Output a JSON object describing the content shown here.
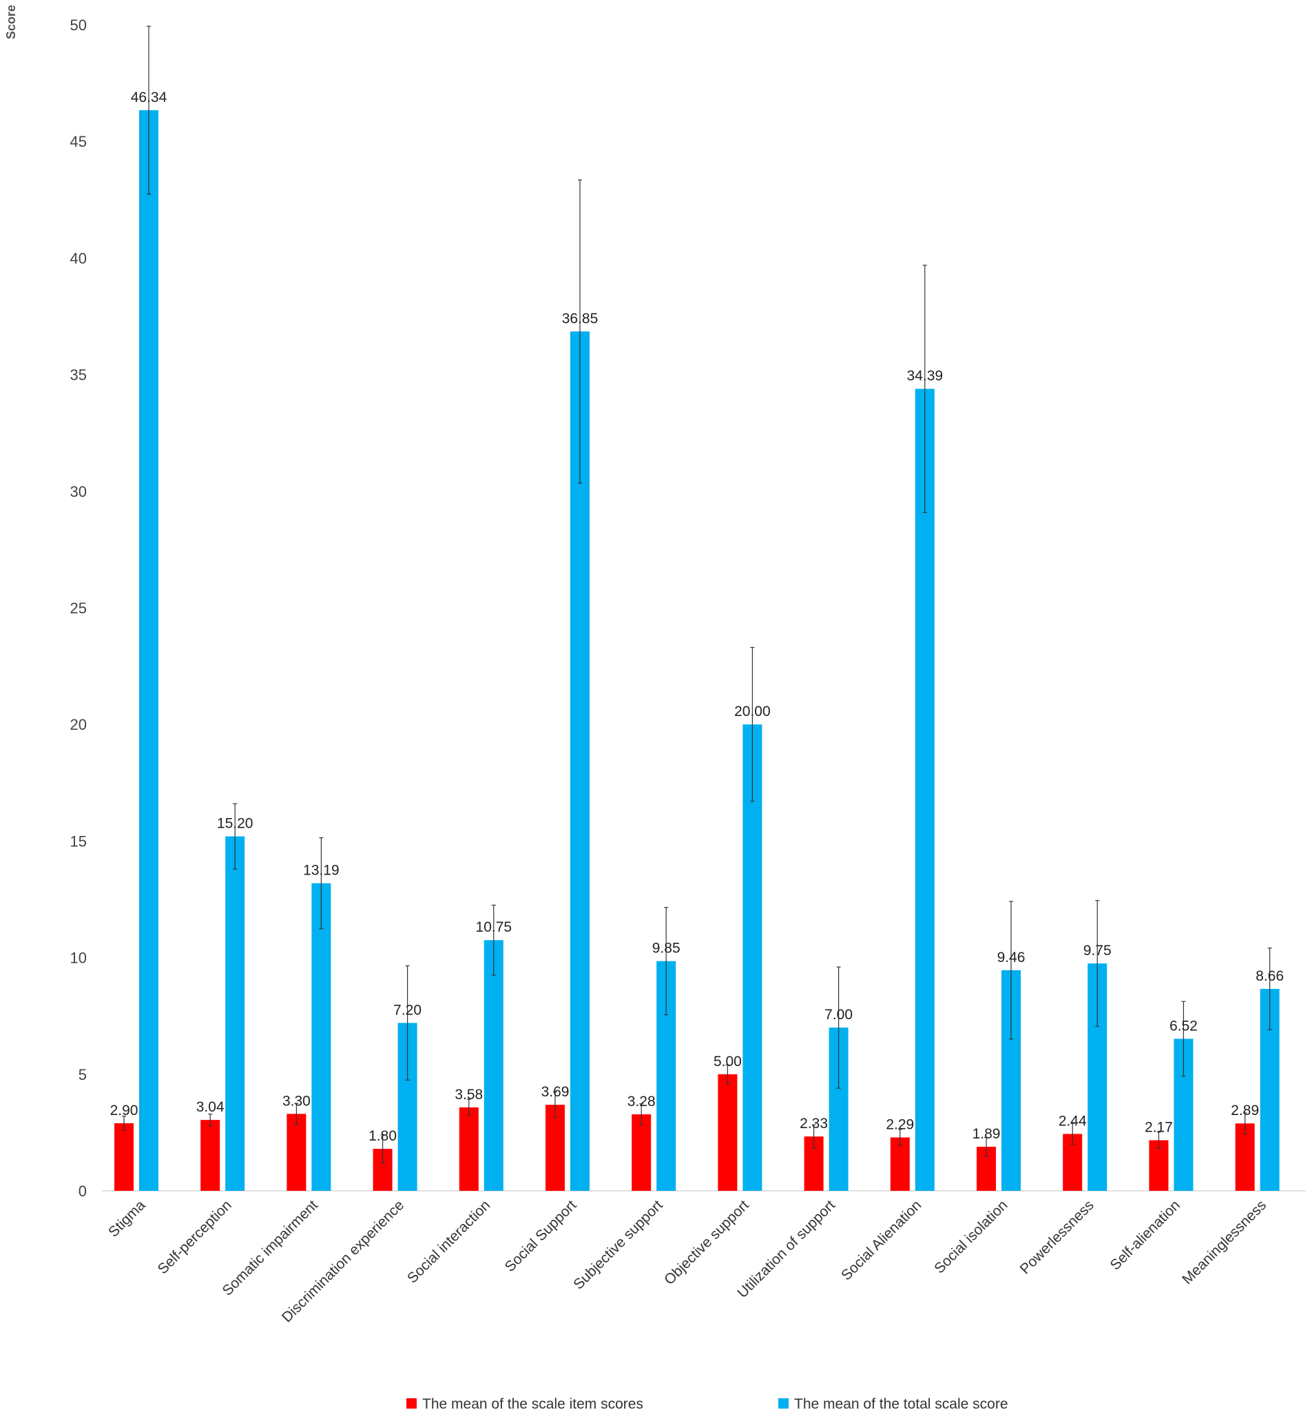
{
  "chart_data": {
    "type": "bar",
    "ylabel": "Score",
    "ylim": [
      0,
      50
    ],
    "yticks": [
      0,
      5,
      10,
      15,
      20,
      25,
      30,
      35,
      40,
      45,
      50
    ],
    "grid": false,
    "legend_position": "bottom",
    "categories": [
      "Stigma",
      "Self-perception",
      "Somatic impairment",
      "Discrimination experience",
      "Social interaction",
      "Social Support",
      "Subjective support",
      "Objective support",
      "Utilization of support",
      "Social Alienation",
      "Social isolation",
      "Powerlessness",
      "Self-alienation",
      "Meaninglessness"
    ],
    "series": [
      {
        "name": "The mean of the scale item scores",
        "color": "#ff0000",
        "values": [
          2.9,
          3.04,
          3.3,
          1.8,
          3.58,
          3.69,
          3.28,
          5.0,
          2.33,
          2.29,
          1.89,
          2.44,
          2.17,
          2.89
        ],
        "labels": [
          "2.90",
          "3.04",
          "3.30",
          "1.80",
          "3.58",
          "3.69",
          "3.28",
          "5.00",
          "2.33",
          "2.29",
          "1.89",
          "2.44",
          "2.17",
          "2.89"
        ],
        "error": [
          0.3,
          0.25,
          0.45,
          0.6,
          0.35,
          0.55,
          0.45,
          0.4,
          0.5,
          0.35,
          0.4,
          0.45,
          0.35,
          0.45
        ]
      },
      {
        "name": "The mean of the total scale score",
        "color": "#00b0f0",
        "values": [
          46.34,
          15.2,
          13.19,
          7.2,
          10.75,
          36.85,
          9.85,
          20.0,
          7.0,
          34.39,
          9.46,
          9.75,
          6.52,
          8.66
        ],
        "labels": [
          "46.34",
          "15.20",
          "13.19",
          "7.20",
          "10.75",
          "36.85",
          "9.85",
          "20.00",
          "7.00",
          "34.39",
          "9.46",
          "9.75",
          "6.52",
          "8.66"
        ],
        "error": [
          3.6,
          1.4,
          1.95,
          2.45,
          1.5,
          6.5,
          2.3,
          3.3,
          2.6,
          5.3,
          2.95,
          2.7,
          1.6,
          1.75
        ]
      }
    ]
  }
}
